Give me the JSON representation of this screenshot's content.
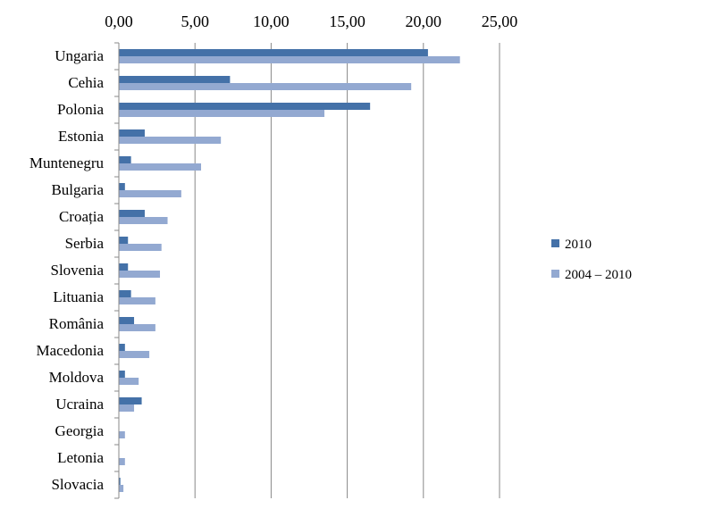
{
  "chart_data": {
    "type": "bar",
    "orientation": "horizontal",
    "xlim": [
      0,
      25
    ],
    "x_ticks": [
      0,
      5,
      10,
      15,
      20,
      25
    ],
    "x_tick_labels": [
      "0,00",
      "5,00",
      "10,00",
      "15,00",
      "20,00",
      "25,00"
    ],
    "x_axis_position": "top",
    "grid": "vertical",
    "legend_position": "right",
    "categories": [
      "Ungaria",
      "Cehia",
      "Polonia",
      "Estonia",
      "Muntenegru",
      "Bulgaria",
      "Croația",
      "Serbia",
      "Slovenia",
      "Lituania",
      "România",
      "Macedonia",
      "Moldova",
      "Ucraina",
      "Georgia",
      "Letonia",
      "Slovacia"
    ],
    "series": [
      {
        "name": "2010",
        "color": "#4471a8",
        "values": [
          20.3,
          7.3,
          16.5,
          1.7,
          0.8,
          0.4,
          1.7,
          0.6,
          0.6,
          0.8,
          1.0,
          0.4,
          0.4,
          1.5,
          0.0,
          0.0,
          0.1
        ]
      },
      {
        "name": "2004 – 2010",
        "color": "#93a9d1",
        "values": [
          22.4,
          19.2,
          13.5,
          6.7,
          5.4,
          4.1,
          3.2,
          2.8,
          2.7,
          2.4,
          2.4,
          2.0,
          1.3,
          1.0,
          0.4,
          0.4,
          0.3
        ]
      }
    ]
  }
}
